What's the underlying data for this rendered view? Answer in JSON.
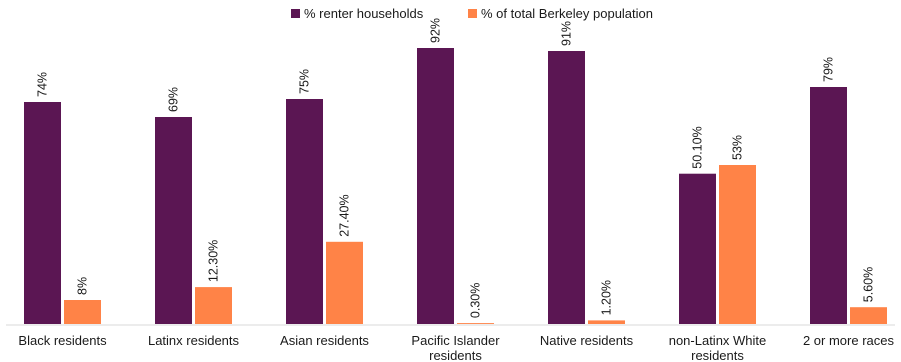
{
  "chart_data": {
    "type": "bar",
    "categories": [
      [
        "Black residents"
      ],
      [
        "Latinx residents"
      ],
      [
        "Asian residents"
      ],
      [
        "Pacific Islander",
        "residents"
      ],
      [
        "Native residents"
      ],
      [
        "non-Latinx White",
        "residents"
      ],
      [
        "2 or more races"
      ]
    ],
    "series": [
      {
        "name": "% renter households",
        "color": "#5b1653",
        "values": [
          74,
          69,
          75,
          92,
          91,
          50.1,
          79
        ],
        "labels": [
          "74%",
          "69%",
          "75%",
          "92%",
          "91%",
          "50.10%",
          "79%"
        ]
      },
      {
        "name": "% of total Berkeley population",
        "color": "#ff8347",
        "values": [
          8,
          12.3,
          27.4,
          0.3,
          1.2,
          53,
          5.6
        ],
        "labels": [
          "8%",
          "12.30%",
          "27.40%",
          "0.30%",
          "1.20%",
          "53%",
          "5.60%"
        ]
      }
    ],
    "ylim": [
      0,
      100
    ],
    "grid": false,
    "legend_position": "top-center",
    "data_label_orientation": "rotated-vertical"
  }
}
